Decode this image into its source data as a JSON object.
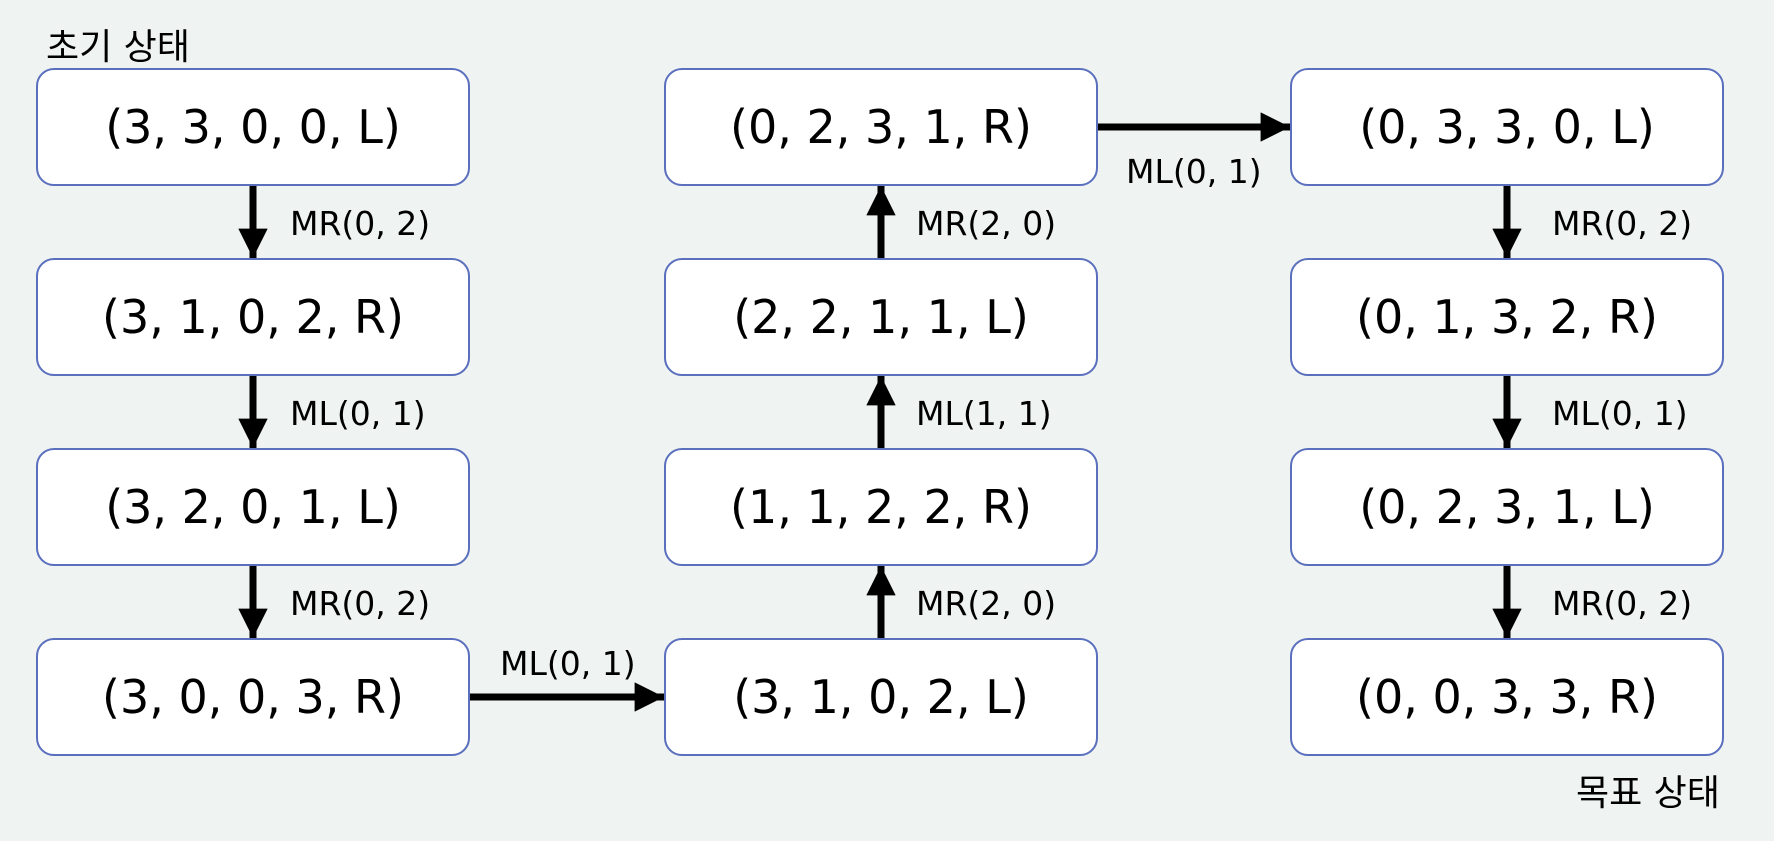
{
  "captions": {
    "start": "초기 상태",
    "goal": "목표 상태"
  },
  "nodes": [
    "(3, 3, 0, 0, L)",
    "(3, 1, 0, 2, R)",
    "(3, 2, 0, 1, L)",
    "(3, 0, 0, 3, R)",
    "(3, 1, 0, 2, L)",
    "(1, 1, 2, 2, R)",
    "(2, 2, 1, 1, L)",
    "(0, 2, 3, 1, R)",
    "(0, 3, 3, 0, L)",
    "(0, 1, 3, 2, R)",
    "(0, 2, 3, 1, L)",
    "(0, 0, 3, 3, R)"
  ],
  "edges": [
    {
      "from": 0,
      "to": 1,
      "label": "MR(0, 2)"
    },
    {
      "from": 1,
      "to": 2,
      "label": "ML(0, 1)"
    },
    {
      "from": 2,
      "to": 3,
      "label": "MR(0, 2)"
    },
    {
      "from": 3,
      "to": 4,
      "label": "ML(0, 1)"
    },
    {
      "from": 4,
      "to": 5,
      "label": "MR(2, 0)"
    },
    {
      "from": 5,
      "to": 6,
      "label": "ML(1, 1)"
    },
    {
      "from": 6,
      "to": 7,
      "label": "MR(2, 0)"
    },
    {
      "from": 7,
      "to": 8,
      "label": "ML(0, 1)"
    },
    {
      "from": 8,
      "to": 9,
      "label": "MR(0, 2)"
    },
    {
      "from": 9,
      "to": 10,
      "label": "ML(0, 1)"
    },
    {
      "from": 10,
      "to": 11,
      "label": "MR(0, 2)"
    }
  ]
}
